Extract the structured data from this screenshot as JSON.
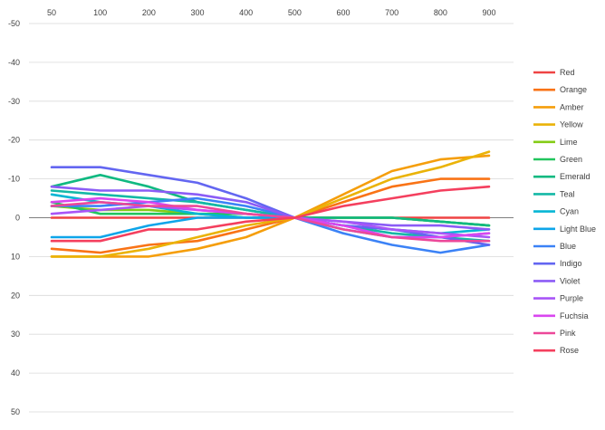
{
  "chart_data": {
    "type": "line",
    "title": "",
    "xlabel": "",
    "ylabel": "",
    "categories": [
      "50",
      "100",
      "200",
      "300",
      "400",
      "500",
      "600",
      "700",
      "800",
      "900"
    ],
    "y_axis": {
      "reversed": true,
      "ylim": [
        -50,
        50
      ],
      "ticks": [
        -50,
        -40,
        -30,
        -20,
        -10,
        0,
        10,
        20,
        30,
        40,
        50
      ],
      "tick_labels": [
        "-50",
        "-40",
        "-30",
        "-20",
        "-10",
        "0",
        "10",
        "20",
        "30",
        "40",
        "50"
      ]
    },
    "x_axis_position": "top",
    "grid": true,
    "legend_position": "right",
    "series": [
      {
        "name": "Red",
        "color": "#ef4444",
        "values": [
          0,
          0,
          0,
          0,
          0,
          0,
          0,
          0,
          0,
          0
        ]
      },
      {
        "name": "Orange",
        "color": "#f97316",
        "values": [
          8,
          9,
          7,
          6,
          3,
          0,
          -4,
          -8,
          -10,
          -10
        ]
      },
      {
        "name": "Amber",
        "color": "#f59e0b",
        "values": [
          10,
          10,
          10,
          8,
          5,
          0,
          -6,
          -12,
          -15,
          -16
        ]
      },
      {
        "name": "Yellow",
        "color": "#eab308",
        "values": [
          10,
          10,
          8,
          5,
          2,
          0,
          -5,
          -10,
          -13,
          -17
        ]
      },
      {
        "name": "Lime",
        "color": "#84cc16",
        "values": [
          -3,
          -2,
          -2,
          -1,
          0,
          0,
          0,
          0,
          1,
          2
        ]
      },
      {
        "name": "Green",
        "color": "#22c55e",
        "values": [
          -4,
          -1,
          -1,
          -1,
          -1,
          0,
          0,
          0,
          1,
          2
        ]
      },
      {
        "name": "Emerald",
        "color": "#10b981",
        "values": [
          -8,
          -11,
          -8,
          -4,
          -2,
          0,
          0,
          0,
          1,
          2
        ]
      },
      {
        "name": "Teal",
        "color": "#14b8a6",
        "values": [
          -7,
          -6,
          -5,
          -4,
          -2,
          0,
          2,
          4,
          5,
          6
        ]
      },
      {
        "name": "Cyan",
        "color": "#06b6d4",
        "values": [
          -6,
          -4,
          -3,
          -1,
          0,
          0,
          2,
          3,
          4,
          3
        ]
      },
      {
        "name": "Light Blue",
        "color": "#0ea5e9",
        "values": [
          5,
          5,
          2,
          0,
          0,
          0,
          3,
          5,
          5,
          4
        ]
      },
      {
        "name": "Blue",
        "color": "#3b82f6",
        "values": [
          -3,
          -3,
          -4,
          -5,
          -3,
          0,
          4,
          7,
          9,
          7
        ]
      },
      {
        "name": "Indigo",
        "color": "#6366f1",
        "values": [
          -13,
          -13,
          -11,
          -9,
          -5,
          0,
          2,
          3,
          5,
          7
        ]
      },
      {
        "name": "Violet",
        "color": "#8b5cf6",
        "values": [
          -8,
          -7,
          -7,
          -6,
          -4,
          0,
          1,
          2,
          2,
          3
        ]
      },
      {
        "name": "Purple",
        "color": "#a855f7",
        "values": [
          -1,
          -2,
          -3,
          -2,
          -1,
          0,
          1,
          3,
          4,
          5
        ]
      },
      {
        "name": "Fuchsia",
        "color": "#d946ef",
        "values": [
          -4,
          -5,
          -4,
          -2,
          -1,
          0,
          2,
          5,
          5,
          4
        ]
      },
      {
        "name": "Pink",
        "color": "#ec4899",
        "values": [
          -3,
          -4,
          -3,
          -3,
          -1,
          0,
          3,
          5,
          6,
          6
        ]
      },
      {
        "name": "Rose",
        "color": "#f43f5e",
        "values": [
          6,
          6,
          3,
          3,
          1,
          0,
          -3,
          -5,
          -7,
          -8
        ]
      }
    ]
  }
}
